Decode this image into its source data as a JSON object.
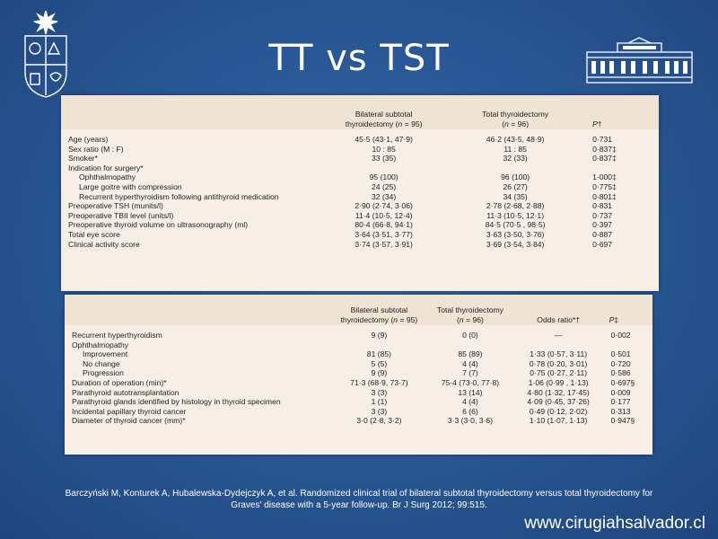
{
  "title": "TT vs TST",
  "table1": {
    "headers": [
      "",
      "Bilateral subtotal thyroidectomy (n = 95)",
      "Total thyroidectomy (n = 96)",
      "P†"
    ],
    "rows": [
      {
        "label": "Age (years)",
        "a": "45·5 (43·1, 47·9)",
        "b": "46·2 (43·5, 48·9)",
        "p": "0·731",
        "indent": false
      },
      {
        "label": "Sex ratio (M : F)",
        "a": "10 : 85",
        "b": "11 : 85",
        "p": "0·837‡",
        "indent": false
      },
      {
        "label": "Smoker*",
        "a": "33 (35)",
        "b": "32 (33)",
        "p": "0·837‡",
        "indent": false
      },
      {
        "label": "Indication for surgery*",
        "a": "",
        "b": "",
        "p": "",
        "indent": false
      },
      {
        "label": "Ophthalmopathy",
        "a": "95 (100)",
        "b": "96 (100)",
        "p": "1·000‡",
        "indent": true
      },
      {
        "label": "Large goitre with compression",
        "a": "24 (25)",
        "b": "26 (27)",
        "p": "0·775‡",
        "indent": true
      },
      {
        "label": "Recurrent hyperthyroidism following antithyroid medication",
        "a": "32 (34)",
        "b": "34 (35)",
        "p": "0·801‡",
        "indent": true
      },
      {
        "label": "Preoperative TSH (munits/l)",
        "a": "2·90 (2·74, 3·06)",
        "b": "2·78 (2·68, 2·88)",
        "p": "0·831",
        "indent": false
      },
      {
        "label": "Preoperative TBII level (units/l)",
        "a": "11·4 (10·5, 12·4)",
        "b": "11·3 (10·5, 12·1)",
        "p": "0·737",
        "indent": false
      },
      {
        "label": "Preoperative thyroid volume on ultrasonography (ml)",
        "a": "80·4 (66·8, 94·1)",
        "b": "84·5 (70·5 , 98·5)",
        "p": "0·397",
        "indent": false
      },
      {
        "label": "Total eye score",
        "a": "3·64 (3·51, 3·77)",
        "b": "3·63 (3·50, 3·76)",
        "p": "0·887",
        "indent": false
      },
      {
        "label": "Clinical activity score",
        "a": "3·74 (3·57, 3·91)",
        "b": "3·69 (3·54, 3·84)",
        "p": "0·697",
        "indent": false
      }
    ]
  },
  "table2": {
    "headers": [
      "",
      "Bilateral subtotal thyroidectomy (n = 95)",
      "Total thyroidectomy (n = 96)",
      "Odds ratio*†",
      "P‡"
    ],
    "rows": [
      {
        "label": "Recurrent hyperthyroidism",
        "a": "9 (9)",
        "b": "0 (0)",
        "o": "—",
        "p": "0·002",
        "indent": false
      },
      {
        "label": "Ophthalmopathy",
        "a": "",
        "b": "",
        "o": "",
        "p": "",
        "indent": false
      },
      {
        "label": "Improvement",
        "a": "81 (85)",
        "b": "85 (89)",
        "o": "1·33 (0·57, 3·11)",
        "p": "0·501",
        "indent": true
      },
      {
        "label": "No change",
        "a": "5 (5)",
        "b": "4 (4)",
        "o": "0·78 (0·20, 3·01)",
        "p": "0·720",
        "indent": true
      },
      {
        "label": "Progression",
        "a": "9 (9)",
        "b": "7 (7)",
        "o": "0·75 (0·27, 2·11)",
        "p": "0·586",
        "indent": true
      },
      {
        "label": "Duration of operation (min)*",
        "a": "71·3 (68·9, 73·7)",
        "b": "75·4 (73·0, 77·8)",
        "o": "1·06 (0·99 , 1·13)",
        "p": "0·697§",
        "indent": false
      },
      {
        "label": "Parathyroid autotransplantation",
        "a": "3 (3)",
        "b": "13 (14)",
        "o": "4·80 (1·32, 17·45)",
        "p": "0·009",
        "indent": false
      },
      {
        "label": "Parathyroid glands identified by histology in thyroid specimen",
        "a": "1 (1)",
        "b": "4 (4)",
        "o": "4·09 (0·45, 37·26)",
        "p": "0·177",
        "indent": false
      },
      {
        "label": "Incidental papillary thyroid cancer",
        "a": "3 (3)",
        "b": "6 (6)",
        "o": "0·49 (0·12, 2·02)",
        "p": "0·313",
        "indent": false
      },
      {
        "label": "Diameter of thyroid cancer (mm)*",
        "a": "3·0 (2·8, 3·2)",
        "b": "3·3 (3·0, 3·6)",
        "o": "1·10 (1·07, 1·13)",
        "p": "0·947§",
        "indent": false
      }
    ]
  },
  "citation": "Barczyński M, Konturek A, Hubalewska-Dydejczyk A, et al. Randomized clinical trial of bilateral subtotal thyroidectomy versus total thyroidectomy for Graves' disease with a 5-year follow-up. Br J Surg 2012; 99:515.",
  "url": "www.cirugiahsalvador.cl"
}
